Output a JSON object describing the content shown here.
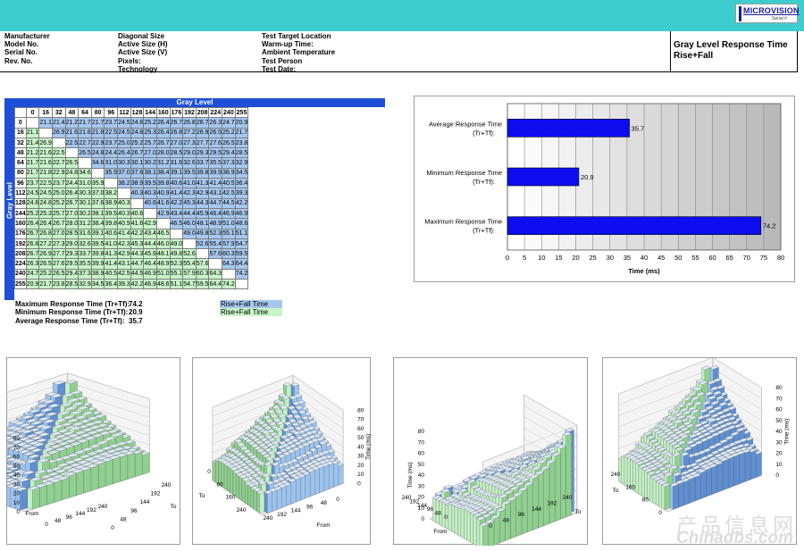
{
  "header": {
    "logo_text": "MICROVISION",
    "logo_sub": "Serial #",
    "col1": [
      "Manufacturer",
      "Model No.",
      "Serial No.",
      "Rev. No."
    ],
    "col2": [
      "Diagonal Size",
      "Active Size (H)",
      "Active Size (V)",
      "Pixels:",
      "Technology"
    ],
    "col3": [
      "Test Target Location",
      "Warm-up Time:",
      "Ambient Temperature",
      "Test Person",
      "Test Date:"
    ],
    "title_line1": "Gray Level Response Time",
    "title_line2": "Rise+Fall"
  },
  "colors": {
    "band": "#3ecdcd",
    "matrix_header": "#1e4fd6",
    "blue_cell": "#a6c8f0",
    "green_cell": "#c8f5c8",
    "bar": "#0d0df0"
  },
  "matrix": {
    "title": "Gray Level",
    "axis_label": "Gray Level",
    "levels": [
      "0",
      "16",
      "32",
      "48",
      "64",
      "80",
      "96",
      "112",
      "128",
      "144",
      "160",
      "176",
      "192",
      "208",
      "224",
      "240",
      "255"
    ],
    "rows": [
      [
        "",
        "21.1",
        "21.4",
        "21.2",
        "21.7",
        "21.7",
        "23.7",
        "24.5",
        "24.6",
        "25.2",
        "26.4",
        "26.7",
        "26.8",
        "26.7",
        "26.3",
        "24.7",
        "20.9"
      ],
      [
        "21.1",
        "",
        "26.9",
        "21.6",
        "21.6",
        "21.8",
        "22.5",
        "24.5",
        "24.8",
        "25.3",
        "26.4",
        "26.8",
        "27.2",
        "26.9",
        "26.5",
        "25.2",
        "21.7"
      ],
      [
        "21.4",
        "26.9",
        "",
        "22.5",
        "22.7",
        "22.9",
        "23.7",
        "25.0",
        "25.2",
        "25.7",
        "26.7",
        "27.0",
        "27.3",
        "27.7",
        "27.6",
        "26.5",
        "23.8"
      ],
      [
        "21.2",
        "21.6",
        "22.5",
        "",
        "26.5",
        "24.8",
        "24.4",
        "26.4",
        "26.7",
        "27.0",
        "28.0",
        "28.5",
        "29.0",
        "29.3",
        "29.5",
        "29.4",
        "28.5"
      ],
      [
        "21.7",
        "21.6",
        "22.7",
        "26.5",
        "",
        "34.6",
        "31.0",
        "30.3",
        "30.1",
        "30.2",
        "31.2",
        "31.6",
        "32.6",
        "33.7",
        "35.5",
        "37.3",
        "32.9"
      ],
      [
        "21.7",
        "21.8",
        "22.9",
        "24.8",
        "34.6",
        "",
        "35.9",
        "37.0",
        "37.6",
        "38.1",
        "38.4",
        "39.1",
        "39.5",
        "39.8",
        "39.9",
        "38.9",
        "34.5"
      ],
      [
        "23.7",
        "22.5",
        "23.7",
        "24.4",
        "31.0",
        "35.9",
        "",
        "38.2",
        "38.9",
        "39.5",
        "39.8",
        "40.6",
        "41.0",
        "41.3",
        "41.4",
        "40.5",
        "36.4"
      ],
      [
        "24.5",
        "24.5",
        "25.0",
        "26.4",
        "30.3",
        "37.0",
        "38.2",
        "",
        "40.3",
        "40.3",
        "40.9",
        "41.4",
        "42.3",
        "42.9",
        "43.1",
        "42.5",
        "39.3"
      ],
      [
        "24.6",
        "24.8",
        "25.2",
        "26.7",
        "30.1",
        "37.6",
        "38.9",
        "40.3",
        "",
        "40.6",
        "41.6",
        "42.2",
        "45.3",
        "44.3",
        "44.7",
        "44.5",
        "42.2"
      ],
      [
        "25.2",
        "25.3",
        "25.7",
        "27.0",
        "30.2",
        "38.1",
        "39.5",
        "40.3",
        "40.6",
        "",
        "42.9",
        "43.4",
        "44.4",
        "45.9",
        "46.4",
        "46.9",
        "46.9"
      ],
      [
        "26.4",
        "26.4",
        "26.7",
        "28.0",
        "31.2",
        "38.4",
        "39.8",
        "40.9",
        "41.6",
        "42.9",
        "",
        "46.5",
        "46.0",
        "48.1",
        "48.9",
        "51.0",
        "48.6"
      ],
      [
        "26.7",
        "26.8",
        "27.0",
        "28.5",
        "31.6",
        "39.1",
        "40.6",
        "41.4",
        "42.2",
        "43.4",
        "46.5",
        "",
        "49.0",
        "49.8",
        "52.3",
        "55.1",
        "51.1"
      ],
      [
        "26.8",
        "27.2",
        "27.3",
        "29.0",
        "32.6",
        "39.5",
        "41.0",
        "42.3",
        "45.3",
        "44.4",
        "46.0",
        "49.0",
        "",
        "52.6",
        "55.4",
        "57.9",
        "54.7"
      ],
      [
        "26.7",
        "26.9",
        "27.7",
        "29.3",
        "33.7",
        "39.8",
        "41.3",
        "42.9",
        "44.3",
        "45.9",
        "48.1",
        "49.8",
        "52.6",
        "",
        "57.6",
        "60.3",
        "59.5"
      ],
      [
        "26.3",
        "26.5",
        "27.6",
        "29.5",
        "35.5",
        "39.9",
        "41.4",
        "43.1",
        "44.7",
        "46.4",
        "48.9",
        "52.3",
        "55.4",
        "57.6",
        "",
        "64.3",
        "64.4"
      ],
      [
        "24.7",
        "25.2",
        "26.5",
        "29.4",
        "37.3",
        "38.9",
        "40.5",
        "42.5",
        "44.5",
        "46.9",
        "51.0",
        "55.1",
        "57.9",
        "60.3",
        "64.3",
        "",
        "74.2"
      ],
      [
        "20.9",
        "21.7",
        "23.8",
        "28.5",
        "32.9",
        "34.5",
        "36.4",
        "39.3",
        "42.2",
        "46.9",
        "48.6",
        "51.1",
        "54.7",
        "59.5",
        "64.4",
        "74.2",
        ""
      ]
    ]
  },
  "stats": [
    {
      "label": "Maximum Response Time (Tr+Tf):",
      "value": "74.2",
      "legend": "Rise+Fall Time",
      "color": "#a6c8f0"
    },
    {
      "label": "Minimum Response Time (Tr+Tf):",
      "value": "20.9",
      "legend": "Rise+Fall Time",
      "color": "#c8f5c8"
    },
    {
      "label": "Average Response Time (Tr+Tf):",
      "value": "35.7",
      "legend": "",
      "color": ""
    }
  ],
  "chart_data": [
    {
      "type": "bar",
      "orientation": "horizontal",
      "categories": [
        "Average Response Time (Tr+Tf):",
        "Minimum Response Time (Tr+Tf):",
        "Maximum Response Time (Tr+Tf):"
      ],
      "values": [
        35.7,
        20.9,
        74.2
      ],
      "xlabel": "Time (ms)",
      "xlim": [
        0,
        80
      ],
      "xticks": [
        0,
        5,
        10,
        15,
        20,
        25,
        30,
        35,
        40,
        45,
        50,
        55,
        60,
        65,
        70,
        75,
        80
      ],
      "grid": true
    },
    {
      "type": "surface3d",
      "source": "matrix",
      "zlabel": "Time (ms)",
      "zticks": [
        0,
        10,
        20,
        30,
        40,
        50,
        60,
        70,
        80
      ],
      "axis_a_label": "From",
      "axis_a_ticks": [
        "0",
        "48",
        "96",
        "144",
        "192",
        "240"
      ],
      "axis_b_label": "To",
      "axis_b_ticks": [
        "0",
        "48",
        "96",
        "144",
        "192",
        "240"
      ]
    },
    {
      "type": "surface3d",
      "source": "matrix",
      "zlabel": "Time (ms)",
      "zticks": [
        0,
        10,
        20,
        30,
        40,
        50,
        60,
        70,
        80
      ],
      "axis_a_label": "To",
      "axis_a_ticks": [
        "0",
        "80",
        "160",
        "240"
      ],
      "axis_b_label": "From",
      "axis_b_ticks": [
        "240",
        "192",
        "144",
        "96",
        "48",
        "0"
      ]
    },
    {
      "type": "surface3d",
      "source": "matrix",
      "zlabel": "Time (ms)",
      "zticks": [
        0,
        10,
        20,
        30,
        40,
        50,
        60,
        70,
        80
      ],
      "axis_a_label": "From",
      "axis_a_ticks": [
        "240",
        "192",
        "144",
        "96",
        "48",
        "0"
      ],
      "axis_b_label": "To",
      "axis_b_ticks": [
        "0",
        "48",
        "96",
        "144",
        "192",
        "240"
      ]
    },
    {
      "type": "surface3d",
      "source": "matrix",
      "zlabel": "Time (ms)",
      "zticks": [
        0,
        10,
        20,
        30,
        40,
        50,
        60,
        70,
        80
      ],
      "axis_a_label": "To",
      "axis_a_ticks": [
        "240",
        "160",
        "80",
        "0"
      ],
      "axis_b_label": "",
      "axis_b_ticks": []
    }
  ],
  "watermark": {
    "line1": "产品信息网",
    "line2": "Chinadbs.com"
  }
}
